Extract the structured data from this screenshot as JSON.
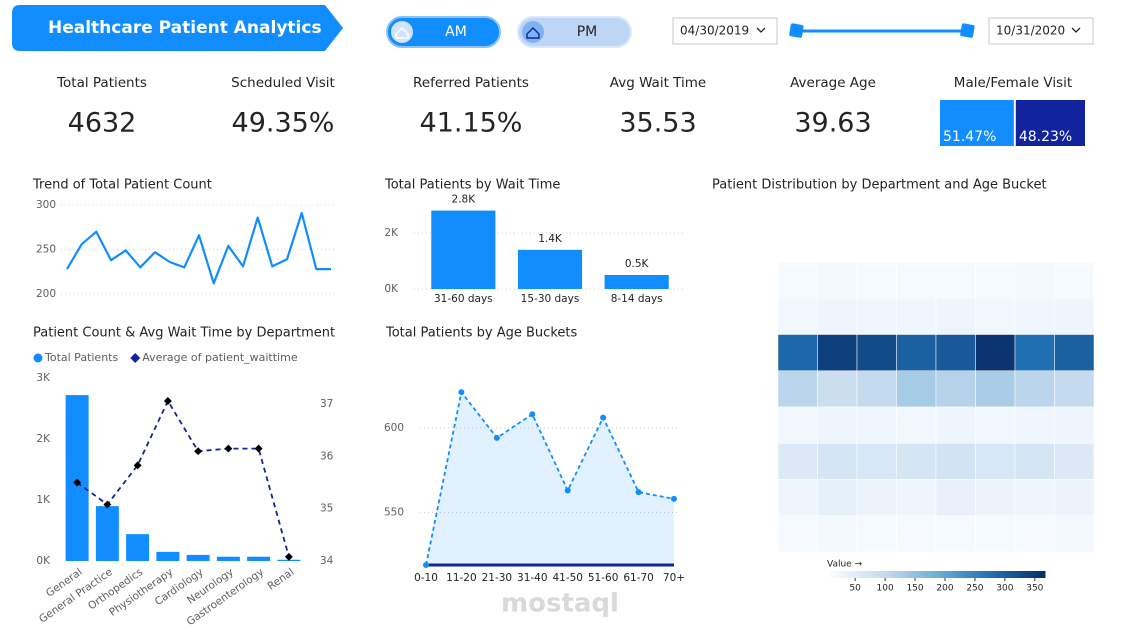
{
  "header": {
    "title": "Healthcare Patient Analytics",
    "toggle": [
      "AM",
      "PM"
    ],
    "date_from": "04/30/2019",
    "date_to": "10/31/2020"
  },
  "kpis": [
    {
      "label": "Total Patients",
      "value": "4632"
    },
    {
      "label": "Scheduled Visit",
      "value": "49.35%"
    },
    {
      "label": "Referred Patients",
      "value": "41.15%"
    },
    {
      "label": "Avg Wait Time",
      "value": "35.53"
    },
    {
      "label": "Average Age",
      "value": "39.63"
    }
  ],
  "watermark": "mostaql",
  "chart_data": [
    {
      "type": "split",
      "title": "Male/Female Visit",
      "values": [
        51.47,
        48.23
      ],
      "value_labels": [
        "51.47%",
        "48.23%"
      ],
      "colors": [
        "#118dff",
        "#12239e"
      ]
    },
    {
      "type": "line",
      "title": "Trend of Total Patient Count",
      "values": [
        228,
        256,
        270,
        238,
        249,
        230,
        247,
        236,
        230,
        266,
        212,
        254,
        231,
        286,
        231,
        239,
        291,
        228,
        228
      ],
      "color": "#118dff",
      "ylim": [
        200,
        300
      ],
      "yticks": [
        200,
        250,
        300
      ],
      "grid": true
    },
    {
      "type": "bar",
      "title": "Total Patients by Wait Time",
      "categories": [
        "31-60 days",
        "15-30 days",
        "8-14 days"
      ],
      "values": [
        2800,
        1400,
        500
      ],
      "value_labels": [
        "2.8K",
        "1.4K",
        "0.5K"
      ],
      "color": "#118dff",
      "ylim": [
        0,
        3000
      ],
      "yticks": [
        {
          "value": 0,
          "label": "0K"
        },
        {
          "value": 2000,
          "label": "2K"
        }
      ],
      "grid": true
    },
    {
      "type": "combo",
      "title": "Patient Count & Avg Wait Time by Department",
      "categories": [
        "General",
        "General Practice",
        "Orthopedics",
        "Physiotherapy",
        "Cardiology",
        "Neurology",
        "Gastroenterology",
        "Renal"
      ],
      "series": [
        {
          "name": "Total Patients",
          "color": "#118dff",
          "values": [
            2720,
            900,
            440,
            150,
            100,
            70,
            70,
            20
          ]
        },
        {
          "name": "Average of patient_waittime",
          "color": "#12239e",
          "axis": "y2",
          "values": [
            35.5,
            35.08,
            35.83,
            37.06,
            36.1,
            36.15,
            36.15,
            34.08
          ]
        }
      ],
      "ylim": [
        0,
        3000
      ],
      "yticks": [
        {
          "value": 0,
          "label": "0K"
        },
        {
          "value": 1000,
          "label": "1K"
        },
        {
          "value": 2000,
          "label": "2K"
        },
        {
          "value": 3000,
          "label": "3K"
        }
      ],
      "y2lim": [
        34,
        37.5
      ],
      "y2ticks": [
        34,
        35,
        36,
        37
      ],
      "legend": "top-left"
    },
    {
      "type": "area",
      "title": "Total Patients by Age Buckets",
      "categories": [
        "0-10",
        "11-20",
        "21-30",
        "31-40",
        "41-50",
        "51-60",
        "61-70",
        "70+"
      ],
      "values": [
        519,
        621,
        594,
        608,
        563,
        606,
        562,
        558
      ],
      "color": "#118dff",
      "ylim": [
        519,
        640
      ],
      "yticks": [
        550,
        600
      ],
      "grid": true
    },
    {
      "type": "heatmap",
      "title": "Patient Distribution by Department and Age Bucket",
      "z": [
        [
          12,
          14,
          12,
          12,
          12,
          12,
          14,
          12
        ],
        [
          20,
          25,
          22,
          22,
          25,
          20,
          22,
          25
        ],
        [
          290,
          345,
          330,
          300,
          310,
          360,
          280,
          300
        ],
        [
          110,
          90,
          100,
          130,
          115,
          125,
          110,
          100
        ],
        [
          20,
          25,
          22,
          20,
          25,
          20,
          22,
          25
        ],
        [
          60,
          70,
          65,
          70,
          75,
          65,
          70,
          60
        ],
        [
          25,
          40,
          30,
          25,
          35,
          30,
          25,
          30
        ],
        [
          10,
          15,
          12,
          10,
          12,
          12,
          10,
          15
        ]
      ],
      "colorbar_label": "Value →",
      "zlim": [
        8,
        367
      ],
      "zticks": [
        50,
        100,
        150,
        200,
        250,
        300,
        350
      ],
      "colors": [
        "#f7fbff",
        "#c6dbef",
        "#6baed6",
        "#2171b5",
        "#08306b"
      ]
    }
  ]
}
